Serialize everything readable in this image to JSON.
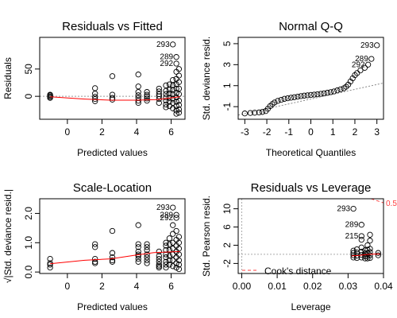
{
  "chart_data": [
    {
      "type": "scatter",
      "title": "Residuals vs Fitted",
      "xlabel": "Predicted values",
      "ylabel": "Residuals",
      "xlim": [
        -1.6,
        6.8
      ],
      "ylim": [
        -42,
        108
      ],
      "xticks": [
        0,
        2,
        4,
        6
      ],
      "yticks": [
        0,
        50
      ],
      "ytick_labels": [
        "0",
        "50"
      ],
      "series": [
        {
          "values": [
            [
              -1,
              2
            ],
            [
              -1,
              0
            ],
            [
              -1,
              -3
            ],
            [
              -1,
              3
            ],
            [
              -1,
              -1
            ],
            [
              1.6,
              15
            ],
            [
              1.6,
              5
            ],
            [
              1.6,
              -1
            ],
            [
              1.6,
              -5
            ],
            [
              1.6,
              -9
            ],
            [
              2.6,
              37
            ],
            [
              2.6,
              3
            ],
            [
              2.6,
              -3
            ],
            [
              2.6,
              -6
            ],
            [
              4.1,
              40
            ],
            [
              4.1,
              18
            ],
            [
              4.1,
              8
            ],
            [
              4.1,
              2
            ],
            [
              4.1,
              -3
            ],
            [
              4.1,
              -8
            ],
            [
              4.1,
              -12
            ],
            [
              4.6,
              8
            ],
            [
              4.6,
              3
            ],
            [
              4.6,
              0
            ],
            [
              4.6,
              -4
            ],
            [
              4.6,
              -8
            ],
            [
              5.3,
              14
            ],
            [
              5.3,
              9
            ],
            [
              5.3,
              4
            ],
            [
              5.3,
              0
            ],
            [
              5.3,
              -5
            ],
            [
              5.3,
              -12
            ],
            [
              5.7,
              20
            ],
            [
              5.7,
              10
            ],
            [
              5.7,
              4
            ],
            [
              5.7,
              -2
            ],
            [
              5.7,
              -8
            ],
            [
              5.7,
              -15
            ],
            [
              5.7,
              -20
            ],
            [
              5.9,
              22
            ],
            [
              5.9,
              12
            ],
            [
              5.9,
              5
            ],
            [
              5.9,
              -3
            ],
            [
              5.9,
              -10
            ],
            [
              5.9,
              -18
            ],
            [
              6.1,
              95
            ],
            [
              6.1,
              30
            ],
            [
              6.1,
              20
            ],
            [
              6.1,
              12
            ],
            [
              6.1,
              4
            ],
            [
              6.1,
              -4
            ],
            [
              6.1,
              -12
            ],
            [
              6.1,
              -22
            ],
            [
              6.3,
              72
            ],
            [
              6.3,
              60
            ],
            [
              6.3,
              45
            ],
            [
              6.3,
              32
            ],
            [
              6.3,
              22
            ],
            [
              6.3,
              14
            ],
            [
              6.3,
              6
            ],
            [
              6.3,
              -2
            ],
            [
              6.3,
              -10
            ],
            [
              6.3,
              -18
            ],
            [
              6.3,
              -26
            ],
            [
              6.3,
              -32
            ],
            [
              6.45,
              50
            ],
            [
              6.45,
              38
            ],
            [
              6.45,
              26
            ],
            [
              6.45,
              14
            ],
            [
              6.45,
              4
            ],
            [
              6.45,
              -8
            ],
            [
              6.45,
              -16
            ],
            [
              6.45,
              -24
            ],
            [
              6.45,
              -30
            ]
          ]
        }
      ],
      "smooth": [
        [
          -1,
          -1
        ],
        [
          1,
          -5
        ],
        [
          2.5,
          -7
        ],
        [
          4,
          -7
        ],
        [
          5.2,
          -6
        ],
        [
          6.5,
          -1
        ]
      ],
      "refline": {
        "y": 0
      },
      "point_labels": [
        {
          "text": "293",
          "x": 6.1,
          "y": 95
        },
        {
          "text": "289",
          "x": 6.3,
          "y": 72
        },
        {
          "text": "292",
          "x": 6.3,
          "y": 60
        }
      ]
    },
    {
      "type": "scatter",
      "title": "Normal Q-Q",
      "xlabel": "Theoretical Quantiles",
      "ylabel": "Std. deviance resid.",
      "xlim": [
        -3.3,
        3.3
      ],
      "ylim": [
        -2.2,
        5.6
      ],
      "xticks": [
        -3,
        -2,
        -1,
        0,
        1,
        2,
        3
      ],
      "yticks": [
        -1,
        1,
        3,
        5
      ],
      "ytick_labels": [
        "-1",
        "1",
        "3",
        "5"
      ],
      "series": [
        {
          "values": [
            [
              -3,
              -1.65
            ],
            [
              -2.75,
              -1.6
            ],
            [
              -2.55,
              -1.58
            ],
            [
              -2.35,
              -1.55
            ],
            [
              -2.2,
              -1.5
            ],
            [
              -2.05,
              -1.42
            ],
            [
              -1.95,
              -1.2
            ],
            [
              -1.85,
              -0.95
            ],
            [
              -1.75,
              -0.75
            ],
            [
              -1.65,
              -0.6
            ],
            [
              -1.5,
              -0.45
            ],
            [
              -1.35,
              -0.35
            ],
            [
              -1.2,
              -0.25
            ],
            [
              -1.05,
              -0.2
            ],
            [
              -0.9,
              -0.15
            ],
            [
              -0.75,
              -0.1
            ],
            [
              -0.6,
              -0.05
            ],
            [
              -0.45,
              0
            ],
            [
              -0.3,
              0.05
            ],
            [
              -0.15,
              0.08
            ],
            [
              0,
              0.12
            ],
            [
              0.15,
              0.15
            ],
            [
              0.3,
              0.18
            ],
            [
              0.45,
              0.22
            ],
            [
              0.6,
              0.27
            ],
            [
              0.75,
              0.32
            ],
            [
              0.9,
              0.38
            ],
            [
              1.05,
              0.45
            ],
            [
              1.2,
              0.55
            ],
            [
              1.35,
              0.65
            ],
            [
              1.5,
              0.75
            ],
            [
              1.6,
              0.9
            ],
            [
              1.7,
              1.1
            ],
            [
              1.8,
              1.4
            ],
            [
              1.9,
              1.7
            ],
            [
              2.0,
              2.0
            ],
            [
              2.1,
              2.2
            ],
            [
              2.25,
              2.45
            ],
            [
              2.45,
              2.7
            ],
            [
              2.6,
              3.0
            ],
            [
              2.75,
              3.55
            ],
            [
              3.0,
              4.85
            ]
          ]
        }
      ],
      "refline": {
        "from": [
          -3.3,
          -1.8
        ],
        "to": [
          3.3,
          1.25
        ]
      },
      "point_labels": [
        {
          "text": "293",
          "x": 3.0,
          "y": 4.85
        },
        {
          "text": "289",
          "x": 2.75,
          "y": 3.55
        },
        {
          "text": "292",
          "x": 2.6,
          "y": 3.0
        }
      ]
    },
    {
      "type": "scatter",
      "title": "Scale-Location",
      "xlabel": "Predicted values",
      "ylabel": "√|Std. deviance resid.|",
      "xlim": [
        -1.6,
        6.8
      ],
      "ylim": [
        -0.05,
        2.5
      ],
      "xticks": [
        0,
        2,
        4,
        6
      ],
      "yticks": [
        0,
        1,
        2
      ],
      "ytick_labels": [
        "0.0",
        "1.0",
        "2.0"
      ],
      "series": [
        {
          "values": [
            [
              -1,
              0.45
            ],
            [
              -1,
              0.3
            ],
            [
              -1,
              0.25
            ],
            [
              -1,
              0.15
            ],
            [
              1.6,
              0.95
            ],
            [
              1.6,
              0.85
            ],
            [
              1.6,
              0.45
            ],
            [
              1.6,
              0.35
            ],
            [
              1.6,
              0.3
            ],
            [
              2.6,
              1.4
            ],
            [
              2.6,
              0.65
            ],
            [
              2.6,
              0.5
            ],
            [
              2.6,
              0.4
            ],
            [
              2.6,
              0.35
            ],
            [
              4.1,
              1.6
            ],
            [
              4.1,
              0.95
            ],
            [
              4.1,
              0.85
            ],
            [
              4.1,
              0.7
            ],
            [
              4.1,
              0.6
            ],
            [
              4.1,
              0.55
            ],
            [
              4.1,
              0.45
            ],
            [
              4.1,
              0.35
            ],
            [
              4.6,
              0.95
            ],
            [
              4.6,
              0.85
            ],
            [
              4.6,
              0.75
            ],
            [
              4.6,
              0.6
            ],
            [
              4.6,
              0.5
            ],
            [
              4.6,
              0.4
            ],
            [
              4.6,
              0.3
            ],
            [
              5.3,
              0.7
            ],
            [
              5.3,
              0.55
            ],
            [
              5.3,
              0.45
            ],
            [
              5.3,
              0.35
            ],
            [
              5.3,
              0.25
            ],
            [
              5.3,
              0.2
            ],
            [
              5.3,
              0.15
            ],
            [
              5.7,
              1.0
            ],
            [
              5.7,
              0.9
            ],
            [
              5.7,
              0.75
            ],
            [
              5.7,
              0.6
            ],
            [
              5.7,
              0.5
            ],
            [
              5.7,
              0.35
            ],
            [
              5.7,
              0.25
            ],
            [
              5.7,
              0.15
            ],
            [
              5.9,
              1.15
            ],
            [
              5.9,
              0.95
            ],
            [
              5.9,
              0.75
            ],
            [
              5.9,
              0.55
            ],
            [
              5.9,
              0.4
            ],
            [
              5.9,
              0.25
            ],
            [
              6.1,
              2.2
            ],
            [
              6.1,
              1.6
            ],
            [
              6.1,
              1.3
            ],
            [
              6.1,
              1.0
            ],
            [
              6.1,
              0.8
            ],
            [
              6.1,
              0.6
            ],
            [
              6.1,
              0.4
            ],
            [
              6.1,
              0.2
            ],
            [
              6.3,
              1.95
            ],
            [
              6.3,
              1.85
            ],
            [
              6.3,
              1.4
            ],
            [
              6.3,
              1.1
            ],
            [
              6.3,
              0.9
            ],
            [
              6.3,
              0.7
            ],
            [
              6.3,
              0.5
            ],
            [
              6.3,
              0.3
            ],
            [
              6.3,
              0.15
            ],
            [
              6.45,
              1.2
            ],
            [
              6.45,
              1.0
            ],
            [
              6.45,
              0.8
            ],
            [
              6.45,
              0.6
            ],
            [
              6.45,
              0.4
            ],
            [
              6.45,
              0.25
            ],
            [
              6.45,
              0.1
            ]
          ]
        }
      ],
      "smooth": [
        [
          -1,
          0.28
        ],
        [
          1,
          0.4
        ],
        [
          2.5,
          0.45
        ],
        [
          4,
          0.58
        ],
        [
          5,
          0.66
        ],
        [
          6.5,
          0.7
        ]
      ],
      "point_labels": [
        {
          "text": "293",
          "x": 6.1,
          "y": 2.2
        },
        {
          "text": "289",
          "x": 6.3,
          "y": 1.95
        },
        {
          "text": "292",
          "x": 6.3,
          "y": 1.85
        }
      ]
    },
    {
      "type": "scatter",
      "title": "Residuals vs Leverage",
      "xlabel": "Leverage",
      "ylabel": "Std. Pearson resid.",
      "xlim": [
        -0.001,
        0.04
      ],
      "ylim": [
        -4.2,
        12.2
      ],
      "xticks": [
        0,
        0.01,
        0.02,
        0.03,
        0.04
      ],
      "xtick_labels": [
        "0.00",
        "0.01",
        "0.02",
        "0.03",
        "0.04"
      ],
      "yticks": [
        -2,
        2,
        6,
        10
      ],
      "ytick_labels": [
        "-2",
        "2",
        "6",
        "10"
      ],
      "series": [
        {
          "values": [
            [
              0.0315,
              10.0
            ],
            [
              0.0338,
              6.5
            ],
            [
              0.0338,
              4.0
            ],
            [
              0.0338,
              3.2
            ],
            [
              0.0362,
              4.3
            ],
            [
              0.0362,
              3.0
            ],
            [
              0.0315,
              0.8
            ],
            [
              0.0315,
              0.3
            ],
            [
              0.0315,
              -0.2
            ],
            [
              0.0315,
              -0.7
            ],
            [
              0.0325,
              1.1
            ],
            [
              0.0325,
              0.4
            ],
            [
              0.0325,
              -0.3
            ],
            [
              0.0325,
              -0.8
            ],
            [
              0.0338,
              1.5
            ],
            [
              0.0338,
              0.6
            ],
            [
              0.0338,
              -0.1
            ],
            [
              0.0338,
              -0.7
            ],
            [
              0.0348,
              0.9
            ],
            [
              0.0348,
              0.2
            ],
            [
              0.0348,
              -0.4
            ],
            [
              0.0348,
              -0.9
            ],
            [
              0.0355,
              2.0
            ],
            [
              0.0355,
              1.0
            ],
            [
              0.0355,
              0.3
            ],
            [
              0.0355,
              -0.4
            ],
            [
              0.0355,
              -0.9
            ],
            [
              0.0362,
              1.2
            ],
            [
              0.0362,
              0.5
            ],
            [
              0.0362,
              -0.2
            ],
            [
              0.0362,
              -0.8
            ],
            [
              0.0385,
              0.3
            ],
            [
              0.0385,
              -0.2
            ]
          ]
        }
      ],
      "smooth": [
        [
          0.031,
          -0.35
        ],
        [
          0.033,
          -0.25
        ],
        [
          0.035,
          -0.05
        ],
        [
          0.037,
          0.05
        ],
        [
          0.039,
          0.08
        ]
      ],
      "refline_h": {
        "y": 0
      },
      "refline_v": {
        "x": 0
      },
      "cooks_contour": [
        [
          0.0365,
          12.2
        ],
        [
          0.04,
          11.3
        ]
      ],
      "cooks_label": "0.5",
      "legend": {
        "label": "Cook's distance",
        "placement": "bottom-left"
      },
      "point_labels": [
        {
          "text": "293",
          "x": 0.0315,
          "y": 10.0
        },
        {
          "text": "289",
          "x": 0.0338,
          "y": 6.5
        },
        {
          "text": "215",
          "x": 0.0338,
          "y": 4.0
        }
      ]
    }
  ]
}
